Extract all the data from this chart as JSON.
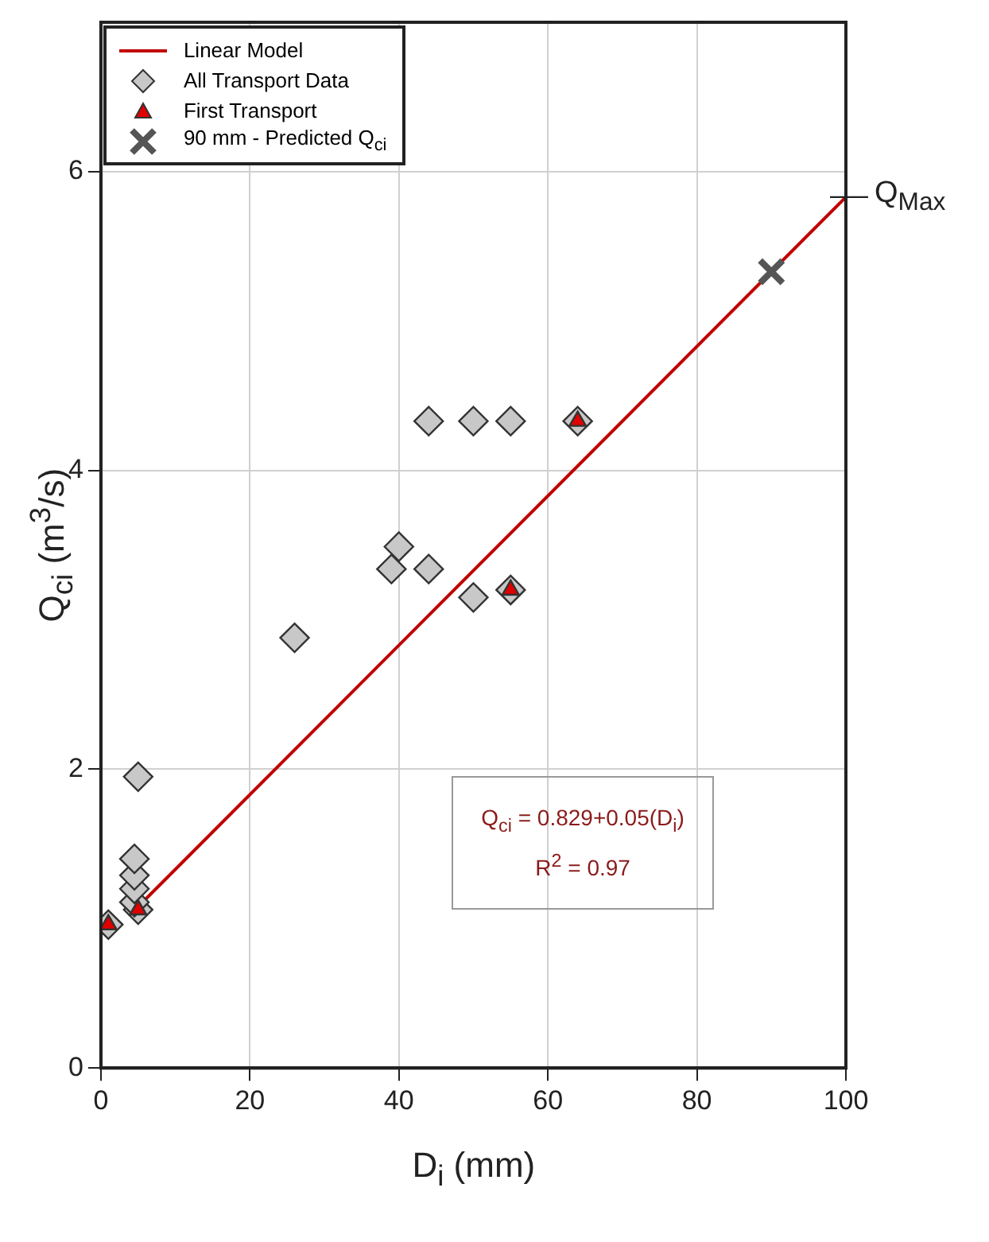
{
  "chart_data": {
    "type": "scatter",
    "xlabel": "D$_{i}$ (mm)",
    "ylabel": "Q$_{ci}$ (m$^{3}$/s)",
    "xlim": [
      0,
      100
    ],
    "ylim": [
      0,
      7
    ],
    "xticks": [
      0,
      20,
      40,
      60,
      80,
      100
    ],
    "yticks": [
      0,
      2,
      4,
      6
    ],
    "grid": true,
    "legend": "top left",
    "annotations": [
      {
        "text": "Q$_{Max}$",
        "x": 100,
        "y": 5.83
      },
      "Q$_{ci}$ = 0.829+0.05(D$_{i}$)",
      "R$^{2}$ = 0.97"
    ],
    "series": [
      {
        "name": "Linear Model",
        "type": "line",
        "color": "#c00000",
        "marker": "none",
        "x": [
          5,
          100
        ],
        "values": [
          1.08,
          5.83
        ]
      },
      {
        "name": "All Transport Data",
        "type": "scatter",
        "color": "#c8c8c8",
        "marker": "diamond",
        "x": [
          1,
          5,
          4.5,
          4.5,
          4.5,
          4.5,
          5,
          26,
          39,
          40,
          44,
          50,
          55,
          44,
          50,
          55,
          64
        ],
        "values": [
          0.96,
          1.06,
          1.11,
          1.2,
          1.29,
          1.4,
          1.95,
          2.88,
          3.34,
          3.49,
          3.34,
          3.15,
          3.2,
          4.33,
          4.33,
          4.33,
          4.33
        ]
      },
      {
        "name": "First Transport",
        "type": "scatter",
        "color": "#e00000",
        "marker": "triangle",
        "x": [
          1,
          5,
          55,
          64
        ],
        "values": [
          0.96,
          1.06,
          3.2,
          4.33
        ]
      },
      {
        "name": "90 mm - Predicted Q$_{ci}$",
        "type": "scatter",
        "color": "#555555",
        "marker": "cross",
        "x": [
          90
        ],
        "values": [
          5.33
        ]
      }
    ]
  }
}
